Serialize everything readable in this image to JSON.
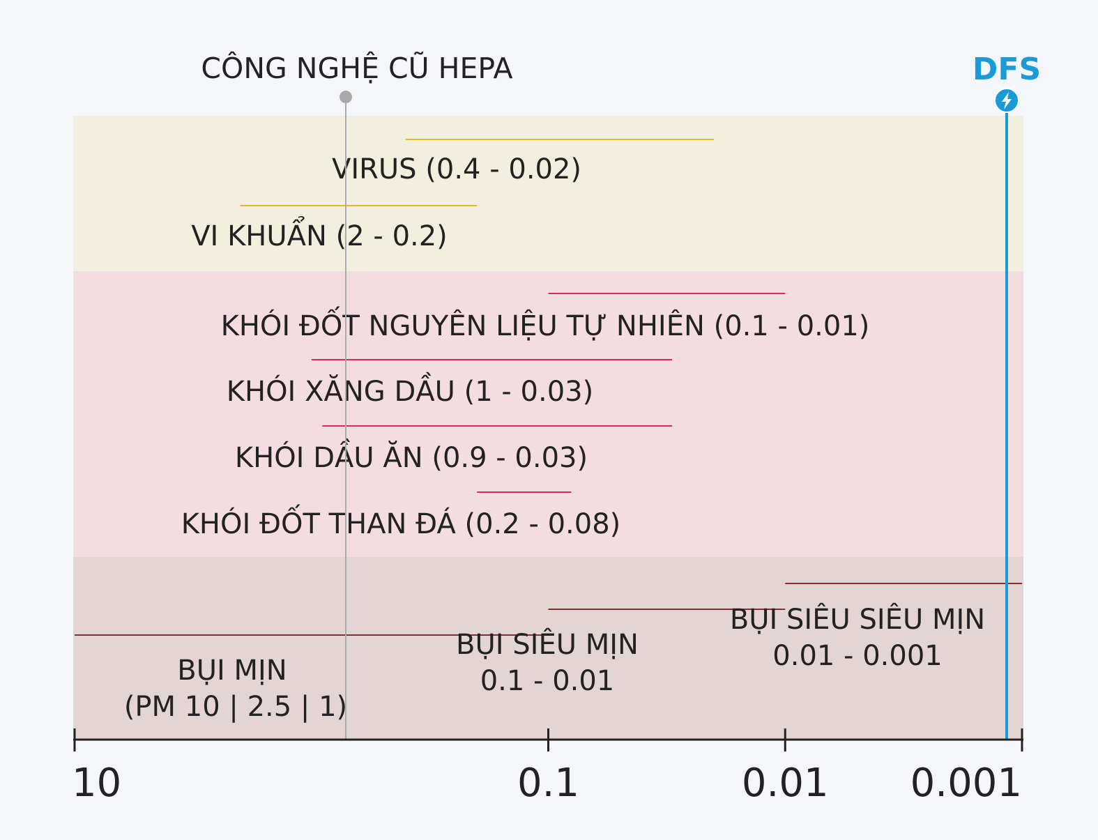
{
  "hepa_label": "CÔNG NGHỆ CŨ HEPA",
  "dfs_label": "DFS",
  "colors": {
    "background": "#f5f6fa",
    "band_bio": "#f3efdf",
    "band_smoke": "#f4dde1",
    "band_dust": "#e2d5d3",
    "line_bio": "#f0b21e",
    "line_smoke": "#e0245e",
    "line_dust": "#8b2a2a",
    "hepa_marker": "#aaaaaa",
    "dfs_accent": "#1a9ad6",
    "axis": "#222222",
    "text": "#222222"
  },
  "axis": {
    "scale": "log",
    "direction": "decreasing",
    "domain": [
      10,
      0.001
    ],
    "ticks": [
      {
        "value": 10,
        "label": "10"
      },
      {
        "value": 0.1,
        "label": "0.1"
      },
      {
        "value": 0.01,
        "label": "0.01"
      },
      {
        "value": 0.001,
        "label": "0.001"
      }
    ]
  },
  "markers": {
    "hepa_value": 0.3,
    "dfs_value": 0.0012
  },
  "groups": [
    {
      "name": "bio",
      "items": [
        {
          "label": "VIRUS (0.4 - 0.02)",
          "from": 0.4,
          "to": 0.02
        },
        {
          "label": "VI KHUẨN (2 - 0.2)",
          "from": 2,
          "to": 0.2
        }
      ]
    },
    {
      "name": "smoke",
      "items": [
        {
          "label": "KHÓI ĐỐT NGUYÊN LIỆU TỰ NHIÊN (0.1 - 0.01)",
          "from": 0.1,
          "to": 0.01
        },
        {
          "label": "KHÓI XĂNG DẦU (1 - 0.03)",
          "from": 1,
          "to": 0.03
        },
        {
          "label": "KHÓI DẦU ĂN (0.9 - 0.03)",
          "from": 0.9,
          "to": 0.03
        },
        {
          "label": "KHÓI ĐỐT THAN ĐÁ (0.2 - 0.08)",
          "from": 0.2,
          "to": 0.08
        }
      ]
    },
    {
      "name": "dust",
      "items": [
        {
          "lines": [
            "BỤI MỊN",
            "(PM 10 | 2.5 | 1)"
          ],
          "from": 10,
          "to": 0.1
        },
        {
          "lines": [
            "BỤI SIÊU MỊN",
            "0.1 - 0.01"
          ],
          "from": 0.1,
          "to": 0.01
        },
        {
          "lines": [
            "BỤI SIÊU SIÊU MỊN",
            "0.01 - 0.001"
          ],
          "from": 0.01,
          "to": 0.001
        }
      ]
    }
  ]
}
